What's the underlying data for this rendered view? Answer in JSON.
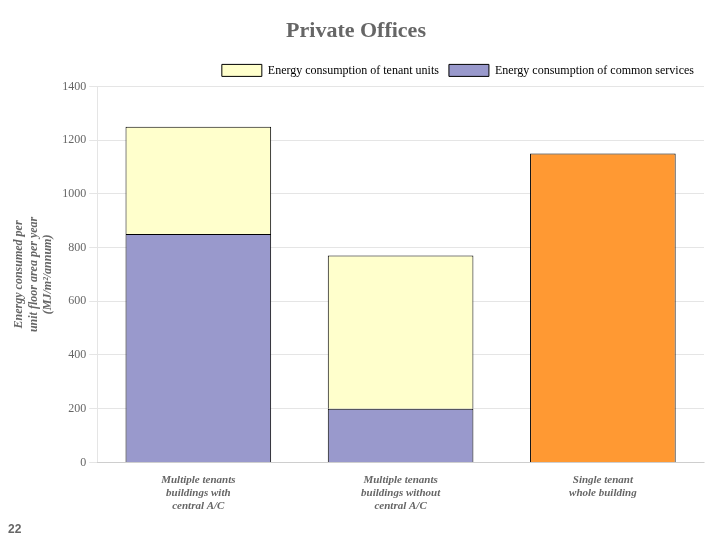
{
  "chart_data": {
    "type": "bar",
    "stacked": true,
    "title": "Private Offices",
    "ylabel": [
      "Energy consumed per",
      "unit floor area per year",
      "(MJ/m²/annum)"
    ],
    "categories": [
      [
        "Multiple tenants",
        "buildings with",
        "central A/C"
      ],
      [
        "Multiple tenants",
        "buildings without",
        "central A/C"
      ],
      [
        "Single tenant",
        "whole building"
      ]
    ],
    "series": [
      {
        "name": "Energy consumption of common services",
        "color": "#9999cc",
        "values": [
          850,
          200,
          0
        ]
      },
      {
        "name": "Energy consumption of tenant units",
        "colors": [
          "#ffffcc",
          "#ffffcc",
          "#ff9933"
        ],
        "values": [
          400,
          570,
          1150
        ]
      }
    ],
    "ylim": [
      0,
      1400
    ],
    "yticks": [
      0,
      200,
      400,
      600,
      800,
      1000,
      1200,
      1400
    ],
    "grid": true,
    "legend": "top-right",
    "annotations": [
      "22"
    ]
  }
}
